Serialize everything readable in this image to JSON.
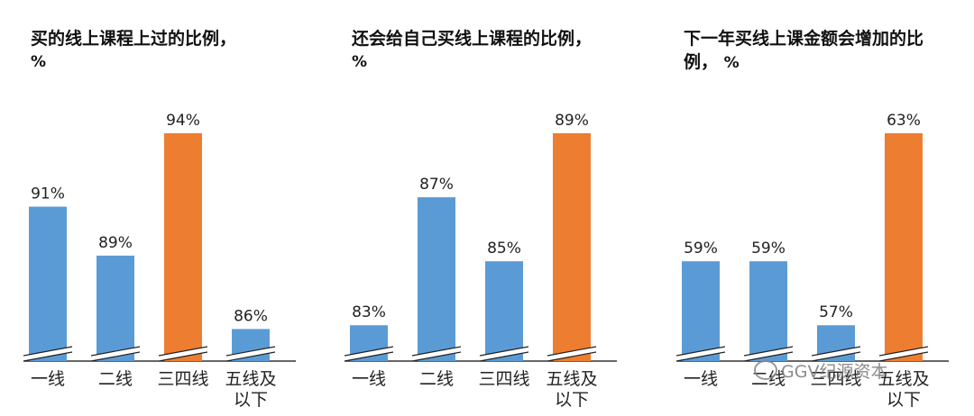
{
  "chart_data": [
    {
      "type": "bar",
      "title": "买的线上课程上过的比例，",
      "unit_label": "%",
      "categories": [
        [
          "一线"
        ],
        [
          "二线"
        ],
        [
          "三四线"
        ],
        [
          "五线及",
          "以下"
        ]
      ],
      "values": [
        91,
        89,
        94,
        86
      ],
      "value_labels": [
        "91%",
        "89%",
        "94%",
        "86%"
      ],
      "highlight_index": 2,
      "axis_break": true,
      "ylim": [
        85.5,
        94
      ]
    },
    {
      "type": "bar",
      "title": "还会给自己买线上课程的比例，",
      "unit_label": "%",
      "categories": [
        [
          "一线"
        ],
        [
          "二线"
        ],
        [
          "三四线"
        ],
        [
          "五线及",
          "以下"
        ]
      ],
      "values": [
        83,
        87,
        85,
        89
      ],
      "value_labels": [
        "83%",
        "87%",
        "85%",
        "89%"
      ],
      "highlight_index": 3,
      "axis_break": true,
      "ylim": [
        82.5,
        89
      ]
    },
    {
      "type": "bar",
      "title": "下一年买线上课金额会增加的比例，",
      "unit_label": "%",
      "categories": [
        [
          "一线"
        ],
        [
          "二线"
        ],
        [
          "三四线"
        ],
        [
          "五线及",
          "以下"
        ]
      ],
      "values": [
        59,
        59,
        57,
        63
      ],
      "value_labels": [
        "59%",
        "59%",
        "57%",
        "63%"
      ],
      "highlight_index": 3,
      "axis_break": true,
      "ylim": [
        56.5,
        63
      ]
    }
  ],
  "colors": {
    "primary": "#5b9bd5",
    "highlight": "#ed7d31",
    "axis": "#333333"
  },
  "watermark": {
    "text": "GGV纪源资本",
    "icon": "wechat-icon"
  }
}
